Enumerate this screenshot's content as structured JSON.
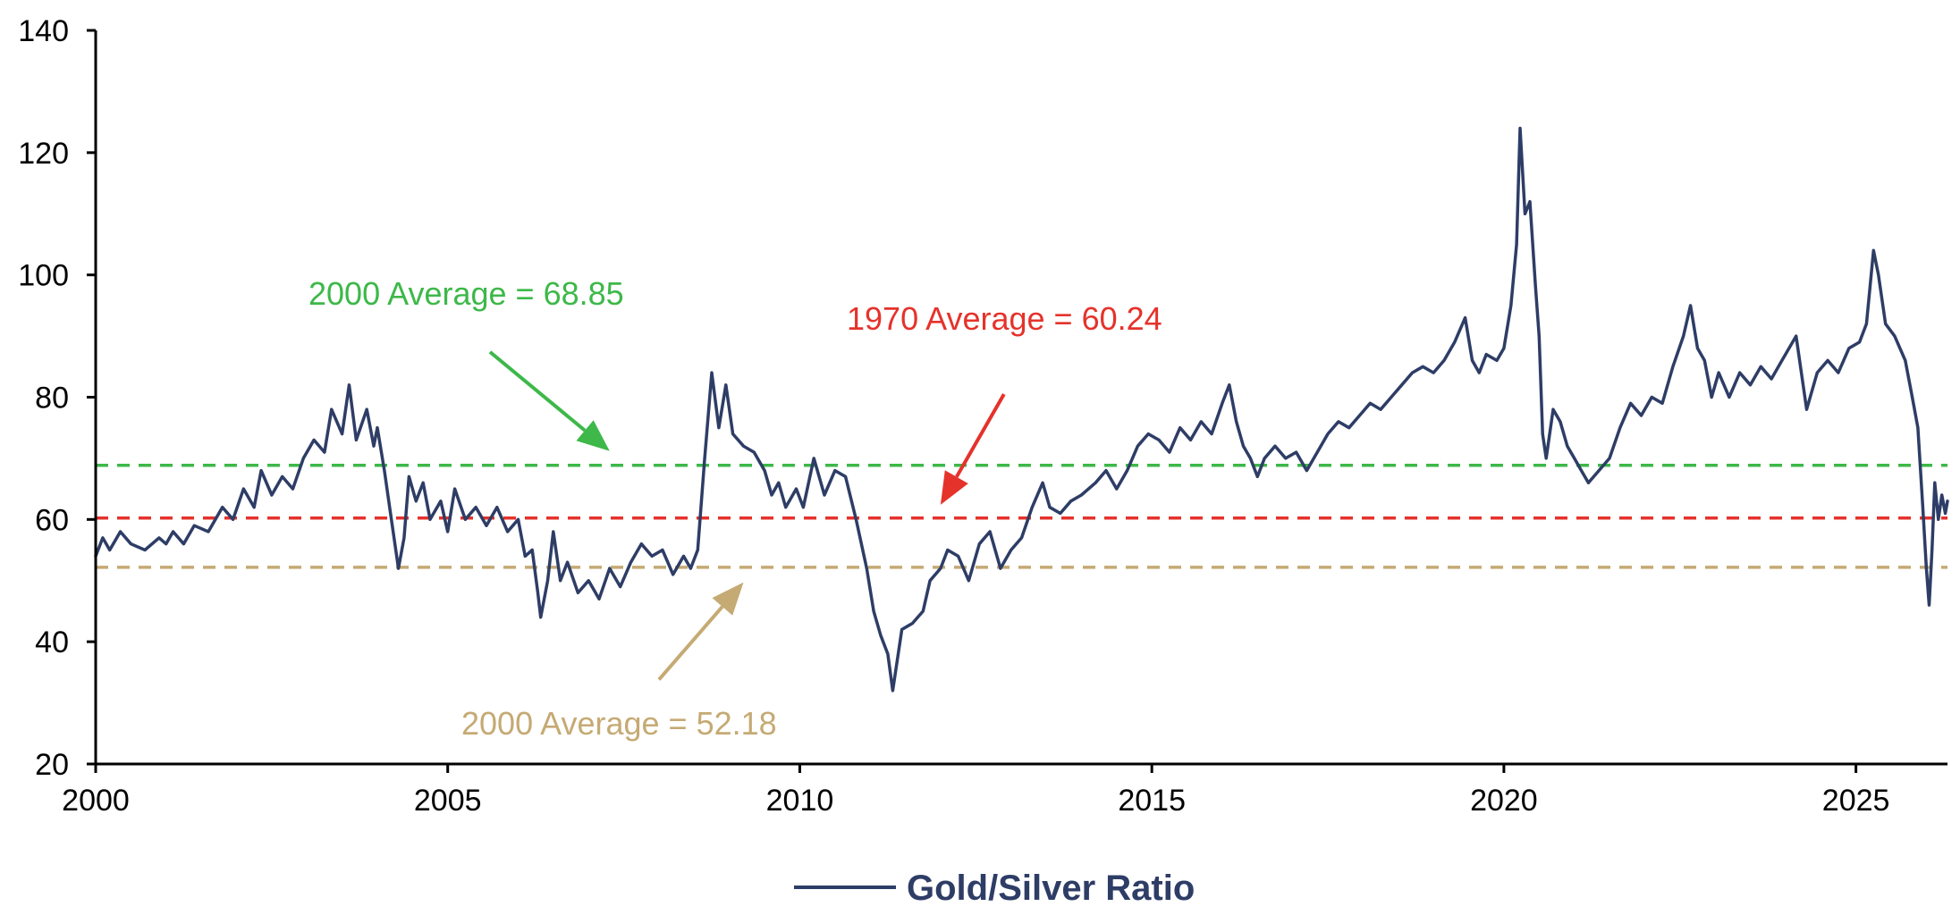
{
  "chart_data": {
    "type": "line",
    "title": "",
    "xlabel": "",
    "ylabel": "",
    "xlim": [
      2000,
      2026.3
    ],
    "ylim": [
      20,
      140
    ],
    "x_ticks": [
      "2000",
      "2005",
      "2010",
      "2015",
      "2020",
      "2025"
    ],
    "y_ticks": [
      "20",
      "40",
      "60",
      "80",
      "100",
      "120",
      "140"
    ],
    "grid": false,
    "legend_position": "bottom-center",
    "series": [
      {
        "name": "Gold/Silver Ratio",
        "color": "#2e3d66",
        "points": [
          [
            2000.0,
            54
          ],
          [
            2000.1,
            57
          ],
          [
            2000.2,
            55
          ],
          [
            2000.35,
            58
          ],
          [
            2000.5,
            56
          ],
          [
            2000.7,
            55
          ],
          [
            2000.9,
            57
          ],
          [
            2001.0,
            56
          ],
          [
            2001.1,
            58
          ],
          [
            2001.25,
            56
          ],
          [
            2001.4,
            59
          ],
          [
            2001.6,
            58
          ],
          [
            2001.8,
            62
          ],
          [
            2001.95,
            60
          ],
          [
            2002.1,
            65
          ],
          [
            2002.25,
            62
          ],
          [
            2002.35,
            68
          ],
          [
            2002.5,
            64
          ],
          [
            2002.65,
            67
          ],
          [
            2002.8,
            65
          ],
          [
            2002.95,
            70
          ],
          [
            2003.1,
            73
          ],
          [
            2003.25,
            71
          ],
          [
            2003.35,
            78
          ],
          [
            2003.5,
            74
          ],
          [
            2003.6,
            82
          ],
          [
            2003.7,
            73
          ],
          [
            2003.85,
            78
          ],
          [
            2003.95,
            72
          ],
          [
            2004.0,
            75
          ],
          [
            2004.1,
            68
          ],
          [
            2004.2,
            60
          ],
          [
            2004.3,
            52
          ],
          [
            2004.38,
            57
          ],
          [
            2004.45,
            67
          ],
          [
            2004.55,
            63
          ],
          [
            2004.65,
            66
          ],
          [
            2004.75,
            60
          ],
          [
            2004.9,
            63
          ],
          [
            2005.0,
            58
          ],
          [
            2005.1,
            65
          ],
          [
            2005.25,
            60
          ],
          [
            2005.4,
            62
          ],
          [
            2005.55,
            59
          ],
          [
            2005.7,
            62
          ],
          [
            2005.85,
            58
          ],
          [
            2006.0,
            60
          ],
          [
            2006.1,
            54
          ],
          [
            2006.2,
            55
          ],
          [
            2006.28,
            48
          ],
          [
            2006.32,
            44
          ],
          [
            2006.42,
            50
          ],
          [
            2006.5,
            58
          ],
          [
            2006.6,
            50
          ],
          [
            2006.7,
            53
          ],
          [
            2006.85,
            48
          ],
          [
            2007.0,
            50
          ],
          [
            2007.15,
            47
          ],
          [
            2007.3,
            52
          ],
          [
            2007.45,
            49
          ],
          [
            2007.6,
            53
          ],
          [
            2007.75,
            56
          ],
          [
            2007.9,
            54
          ],
          [
            2008.05,
            55
          ],
          [
            2008.2,
            51
          ],
          [
            2008.35,
            54
          ],
          [
            2008.45,
            52
          ],
          [
            2008.55,
            55
          ],
          [
            2008.65,
            70
          ],
          [
            2008.75,
            84
          ],
          [
            2008.85,
            75
          ],
          [
            2008.95,
            82
          ],
          [
            2009.05,
            74
          ],
          [
            2009.2,
            72
          ],
          [
            2009.35,
            71
          ],
          [
            2009.5,
            68
          ],
          [
            2009.6,
            64
          ],
          [
            2009.7,
            66
          ],
          [
            2009.8,
            62
          ],
          [
            2009.95,
            65
          ],
          [
            2010.05,
            62
          ],
          [
            2010.2,
            70
          ],
          [
            2010.35,
            64
          ],
          [
            2010.5,
            68
          ],
          [
            2010.65,
            67
          ],
          [
            2010.8,
            60
          ],
          [
            2010.95,
            52
          ],
          [
            2011.05,
            45
          ],
          [
            2011.15,
            41
          ],
          [
            2011.25,
            38
          ],
          [
            2011.32,
            32
          ],
          [
            2011.45,
            42
          ],
          [
            2011.6,
            43
          ],
          [
            2011.75,
            45
          ],
          [
            2011.85,
            50
          ],
          [
            2012.0,
            52
          ],
          [
            2012.1,
            55
          ],
          [
            2012.25,
            54
          ],
          [
            2012.4,
            50
          ],
          [
            2012.55,
            56
          ],
          [
            2012.7,
            58
          ],
          [
            2012.85,
            52
          ],
          [
            2013.0,
            55
          ],
          [
            2013.15,
            57
          ],
          [
            2013.3,
            62
          ],
          [
            2013.45,
            66
          ],
          [
            2013.55,
            62
          ],
          [
            2013.7,
            61
          ],
          [
            2013.85,
            63
          ],
          [
            2014.0,
            64
          ],
          [
            2014.2,
            66
          ],
          [
            2014.35,
            68
          ],
          [
            2014.5,
            65
          ],
          [
            2014.65,
            68
          ],
          [
            2014.8,
            72
          ],
          [
            2014.95,
            74
          ],
          [
            2015.1,
            73
          ],
          [
            2015.25,
            71
          ],
          [
            2015.4,
            75
          ],
          [
            2015.55,
            73
          ],
          [
            2015.7,
            76
          ],
          [
            2015.85,
            74
          ],
          [
            2016.0,
            79
          ],
          [
            2016.1,
            82
          ],
          [
            2016.2,
            76
          ],
          [
            2016.3,
            72
          ],
          [
            2016.4,
            70
          ],
          [
            2016.5,
            67
          ],
          [
            2016.6,
            70
          ],
          [
            2016.75,
            72
          ],
          [
            2016.9,
            70
          ],
          [
            2017.05,
            71
          ],
          [
            2017.2,
            68
          ],
          [
            2017.35,
            71
          ],
          [
            2017.5,
            74
          ],
          [
            2017.65,
            76
          ],
          [
            2017.8,
            75
          ],
          [
            2017.95,
            77
          ],
          [
            2018.1,
            79
          ],
          [
            2018.25,
            78
          ],
          [
            2018.4,
            80
          ],
          [
            2018.55,
            82
          ],
          [
            2018.7,
            84
          ],
          [
            2018.85,
            85
          ],
          [
            2019.0,
            84
          ],
          [
            2019.15,
            86
          ],
          [
            2019.3,
            89
          ],
          [
            2019.45,
            93
          ],
          [
            2019.55,
            86
          ],
          [
            2019.65,
            84
          ],
          [
            2019.75,
            87
          ],
          [
            2019.9,
            86
          ],
          [
            2020.0,
            88
          ],
          [
            2020.1,
            95
          ],
          [
            2020.18,
            105
          ],
          [
            2020.23,
            124
          ],
          [
            2020.3,
            110
          ],
          [
            2020.37,
            112
          ],
          [
            2020.45,
            98
          ],
          [
            2020.5,
            90
          ],
          [
            2020.55,
            74
          ],
          [
            2020.6,
            70
          ],
          [
            2020.7,
            78
          ],
          [
            2020.8,
            76
          ],
          [
            2020.9,
            72
          ],
          [
            2021.0,
            70
          ],
          [
            2021.1,
            68
          ],
          [
            2021.2,
            66
          ],
          [
            2021.35,
            68
          ],
          [
            2021.5,
            70
          ],
          [
            2021.65,
            75
          ],
          [
            2021.8,
            79
          ],
          [
            2021.95,
            77
          ],
          [
            2022.1,
            80
          ],
          [
            2022.25,
            79
          ],
          [
            2022.4,
            85
          ],
          [
            2022.55,
            90
          ],
          [
            2022.65,
            95
          ],
          [
            2022.75,
            88
          ],
          [
            2022.85,
            86
          ],
          [
            2022.95,
            80
          ],
          [
            2023.05,
            84
          ],
          [
            2023.2,
            80
          ],
          [
            2023.35,
            84
          ],
          [
            2023.5,
            82
          ],
          [
            2023.65,
            85
          ],
          [
            2023.8,
            83
          ],
          [
            2023.95,
            86
          ],
          [
            2024.05,
            88
          ],
          [
            2024.15,
            90
          ],
          [
            2024.3,
            78
          ],
          [
            2024.45,
            84
          ],
          [
            2024.6,
            86
          ],
          [
            2024.75,
            84
          ],
          [
            2024.9,
            88
          ],
          [
            2025.05,
            89
          ],
          [
            2025.15,
            92
          ],
          [
            2025.25,
            104
          ],
          [
            2025.32,
            100
          ],
          [
            2025.42,
            92
          ],
          [
            2025.55,
            90
          ],
          [
            2025.7,
            86
          ],
          [
            2025.8,
            80
          ],
          [
            2025.88,
            75
          ],
          [
            2025.95,
            62
          ],
          [
            2026.0,
            52
          ],
          [
            2026.04,
            46
          ],
          [
            2026.08,
            55
          ],
          [
            2026.12,
            66
          ],
          [
            2026.17,
            60
          ],
          [
            2026.22,
            64
          ],
          [
            2026.27,
            61
          ],
          [
            2026.3,
            63
          ]
        ]
      }
    ],
    "reference_lines": [
      {
        "y": 68.85,
        "color": "#3db849",
        "style": "dashed"
      },
      {
        "y": 60.24,
        "color": "#e5322b",
        "style": "dashed"
      },
      {
        "y": 52.18,
        "color": "#c5aa74",
        "style": "dashed"
      }
    ],
    "annotations": [
      {
        "text": "2000 Average = 68.85",
        "color": "#3db849",
        "arrow_from": [
          2005.6,
          87.4
        ],
        "arrow_to": [
          2007.3,
          71.2
        ]
      },
      {
        "text": "1970 Average = 60.24",
        "color": "#e5322b",
        "arrow_from": [
          2012.9,
          80.5
        ],
        "arrow_to": [
          2012.0,
          62.4
        ]
      },
      {
        "text": "2000 Average = 52.18",
        "color": "#c5aa74",
        "arrow_from": [
          2008.0,
          33.8
        ],
        "arrow_to": [
          2009.2,
          49.7
        ]
      }
    ]
  }
}
